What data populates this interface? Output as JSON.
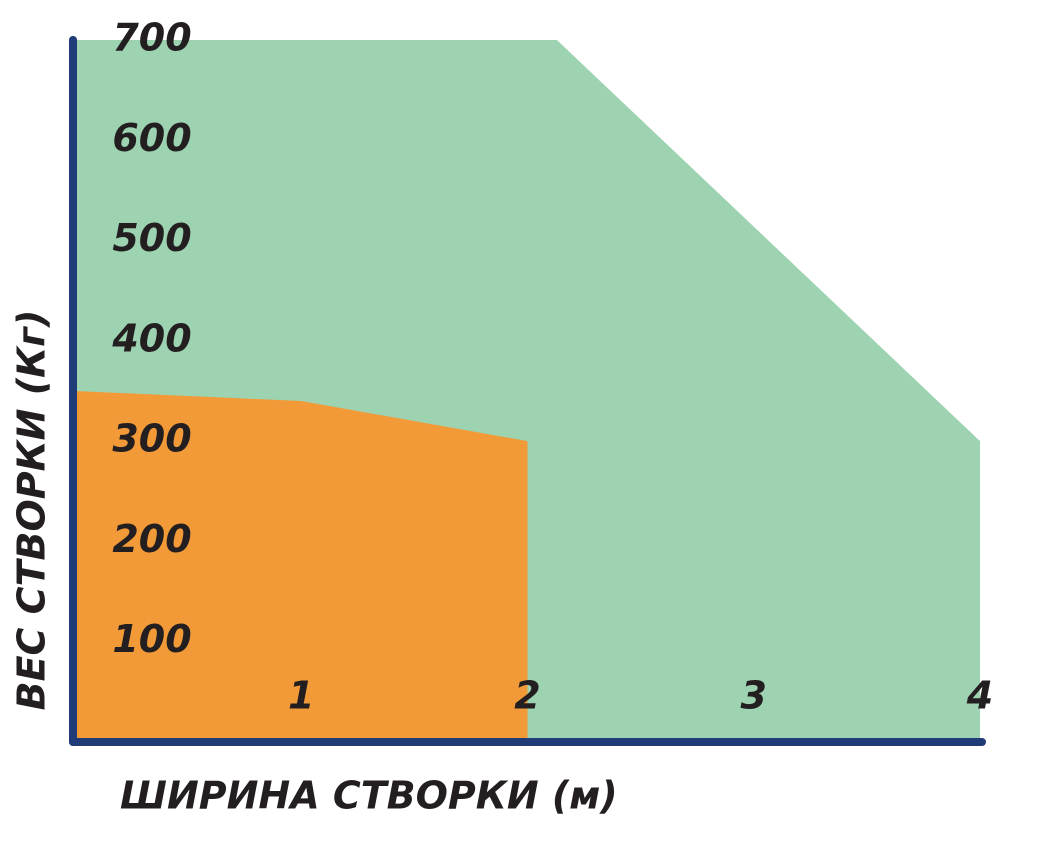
{
  "chart_data": {
    "type": "area",
    "xlabel": "ШИРИНА СТВОРКИ (м)",
    "ylabel": "ВЕС СТВОРКИ (Кг)",
    "xlim": [
      0,
      4
    ],
    "ylim": [
      0,
      700
    ],
    "xticks": [
      1,
      2,
      3,
      4
    ],
    "yticks": [
      100,
      200,
      300,
      400,
      500,
      600,
      700
    ],
    "grid": false,
    "axis_color": "#1f3c78",
    "series": [
      {
        "color": "#9dd3b1",
        "x": [
          0,
          2.13,
          4
        ],
        "values": [
          700,
          700,
          300
        ]
      },
      {
        "color": "#f39a38",
        "x": [
          0,
          1,
          2
        ],
        "values": [
          350,
          340,
          300
        ]
      }
    ]
  }
}
